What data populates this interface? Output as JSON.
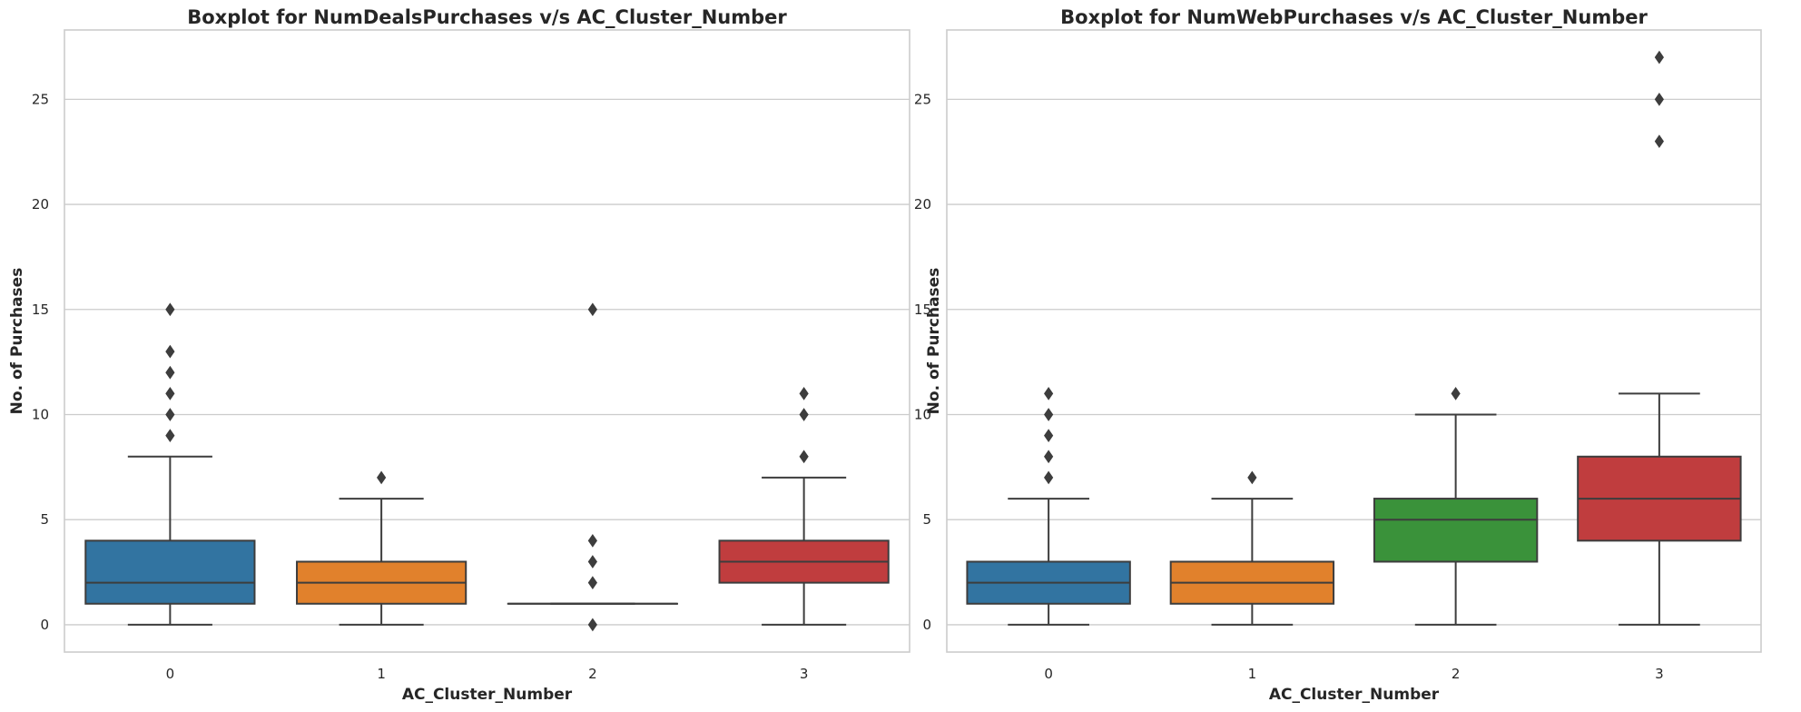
{
  "chart_data": [
    {
      "type": "box",
      "title": "Boxplot for NumDealsPurchases v/s AC_Cluster_Number",
      "xlabel": "AC_Cluster_Number",
      "ylabel": "No. of Purchases",
      "categories": [
        "0",
        "1",
        "2",
        "3"
      ],
      "yticks": [
        0,
        5,
        10,
        15,
        20,
        25
      ],
      "ylim": [
        -1.3,
        28.3
      ],
      "grid": "horizontal",
      "boxes": [
        {
          "category": "0",
          "color": "#3274a1",
          "whisker_low": 0,
          "q1": 1,
          "median": 2,
          "q3": 4,
          "whisker_high": 8,
          "outliers": [
            9,
            10,
            11,
            12,
            13,
            15
          ]
        },
        {
          "category": "1",
          "color": "#e1812c",
          "whisker_low": 0,
          "q1": 1,
          "median": 2,
          "q3": 3,
          "whisker_high": 6,
          "outliers": [
            7
          ]
        },
        {
          "category": "2",
          "color": "#3a923a",
          "whisker_low": 1,
          "q1": 1,
          "median": 1,
          "q3": 1,
          "whisker_high": 1,
          "outliers": [
            0,
            2,
            3,
            4,
            15
          ]
        },
        {
          "category": "3",
          "color": "#c03d3e",
          "whisker_low": 0,
          "q1": 2,
          "median": 3,
          "q3": 4,
          "whisker_high": 7,
          "outliers": [
            8,
            10,
            11
          ]
        }
      ]
    },
    {
      "type": "box",
      "title": "Boxplot for NumWebPurchases v/s AC_Cluster_Number",
      "xlabel": "AC_Cluster_Number",
      "ylabel": "No. of Purchases",
      "categories": [
        "0",
        "1",
        "2",
        "3"
      ],
      "yticks": [
        0,
        5,
        10,
        15,
        20,
        25
      ],
      "ylim": [
        -1.3,
        28.3
      ],
      "grid": "horizontal",
      "boxes": [
        {
          "category": "0",
          "color": "#3274a1",
          "whisker_low": 0,
          "q1": 1,
          "median": 2,
          "q3": 3,
          "whisker_high": 6,
          "outliers": [
            7,
            8,
            9,
            10,
            11
          ]
        },
        {
          "category": "1",
          "color": "#e1812c",
          "whisker_low": 0,
          "q1": 1,
          "median": 2,
          "q3": 3,
          "whisker_high": 6,
          "outliers": [
            7
          ]
        },
        {
          "category": "2",
          "color": "#3a923a",
          "whisker_low": 0,
          "q1": 3,
          "median": 5,
          "q3": 6,
          "whisker_high": 10,
          "outliers": [
            11
          ]
        },
        {
          "category": "3",
          "color": "#c03d3e",
          "whisker_low": 0,
          "q1": 4,
          "median": 6,
          "q3": 8,
          "whisker_high": 11,
          "outliers": [
            23,
            25,
            27
          ]
        }
      ]
    }
  ]
}
